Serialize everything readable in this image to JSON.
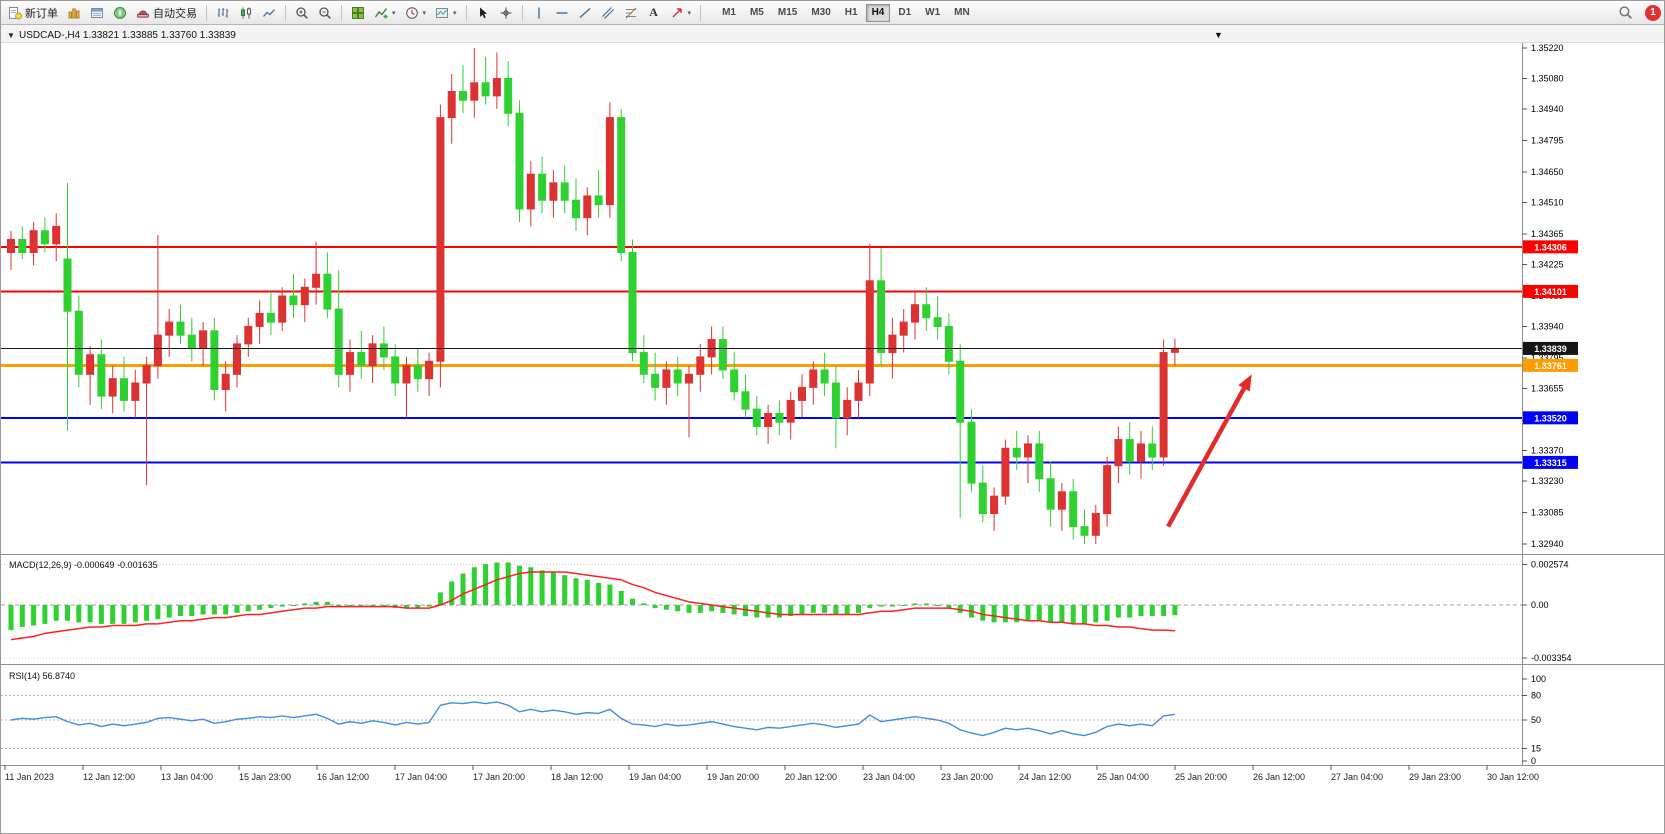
{
  "toolbar": {
    "new_order": "新订单",
    "autotrading": "自动交易",
    "text_tool_glyph": "A",
    "dropdown_glyph": "▾",
    "timeframes": [
      "M1",
      "M5",
      "M15",
      "M30",
      "H1",
      "H4",
      "D1",
      "W1",
      "MN"
    ],
    "active_timeframe": "H4",
    "notification_count": "1"
  },
  "chart_window": {
    "marker": "▼",
    "symbol": "USDCAD-",
    "period": "H4",
    "open": "1.33821",
    "high": "1.33885",
    "low": "1.33760",
    "close": "1.33839"
  },
  "time_axis": [
    "11 Jan 2023",
    "12 Jan 12:00",
    "13 Jan 04:00",
    "15 Jan 23:00",
    "16 Jan 12:00",
    "17 Jan 04:00",
    "17 Jan 20:00",
    "18 Jan 12:00",
    "19 Jan 04:00",
    "19 Jan 20:00",
    "20 Jan 12:00",
    "23 Jan 04:00",
    "23 Jan 20:00",
    "24 Jan 12:00",
    "25 Jan 04:00",
    "25 Jan 20:00",
    "26 Jan 12:00",
    "27 Jan 04:00",
    "29 Jan 23:00",
    "30 Jan 12:00"
  ],
  "chart_data": [
    {
      "type": "candlestick",
      "symbol": "USDCAD-",
      "period": "H4",
      "ylim": [
        1.3294,
        1.3522
      ],
      "up_color": "#dc3232",
      "down_color": "#2fd131",
      "price_ticks": [
        "1.35220",
        "1.35080",
        "1.34940",
        "1.34795",
        "1.34650",
        "1.34510",
        "1.34365",
        "1.34225",
        "1.34080",
        "1.33940",
        "1.33795",
        "1.33655",
        "1.33510",
        "1.33370",
        "1.33230",
        "1.33085",
        "1.32940"
      ],
      "hlines": [
        {
          "price": 1.34306,
          "label": "1.34306",
          "color": "#ff0000",
          "width": 2,
          "above": false
        },
        {
          "price": 1.34101,
          "label": "1.34101",
          "color": "#ff0000",
          "width": 2,
          "above": false
        },
        {
          "price": 1.33839,
          "label": "1.33839",
          "color": "#151515",
          "width": 1,
          "above": true
        },
        {
          "price": 1.33761,
          "label": "1.33761",
          "color": "#ff9c00",
          "width": 3,
          "above": false
        },
        {
          "price": 1.3352,
          "label": "1.33520",
          "color": "#0000ff",
          "width": 2,
          "above": false
        },
        {
          "price": 1.33315,
          "label": "1.33315",
          "color": "#0000ff",
          "width": 2,
          "above": false
        }
      ],
      "trend_arrow": {
        "from_bar": 102.4,
        "from_price": 1.3302,
        "to_bar": 109.8,
        "to_price": 1.3372,
        "color": "#e42b2b"
      },
      "candles": [
        [
          1.3428,
          1.3438,
          1.342,
          1.3434
        ],
        [
          1.3434,
          1.344,
          1.3425,
          1.3428
        ],
        [
          1.3428,
          1.3442,
          1.3422,
          1.3438
        ],
        [
          1.3438,
          1.3444,
          1.3428,
          1.3432
        ],
        [
          1.3432,
          1.3446,
          1.3424,
          1.344
        ],
        [
          1.3425,
          1.346,
          1.3346,
          1.3401
        ],
        [
          1.3401,
          1.3408,
          1.3366,
          1.3372
        ],
        [
          1.3372,
          1.3385,
          1.3358,
          1.3381
        ],
        [
          1.3381,
          1.3388,
          1.3356,
          1.3362
        ],
        [
          1.3362,
          1.3376,
          1.3354,
          1.337
        ],
        [
          1.337,
          1.338,
          1.3355,
          1.336
        ],
        [
          1.336,
          1.3374,
          1.3352,
          1.3368
        ],
        [
          1.3368,
          1.338,
          1.3321,
          1.3376
        ],
        [
          1.3376,
          1.3436,
          1.337,
          1.339
        ],
        [
          1.339,
          1.3402,
          1.338,
          1.3396
        ],
        [
          1.3396,
          1.3404,
          1.3386,
          1.339
        ],
        [
          1.339,
          1.3398,
          1.3378,
          1.3384
        ],
        [
          1.3384,
          1.3396,
          1.3376,
          1.3392
        ],
        [
          1.3392,
          1.3398,
          1.336,
          1.3365
        ],
        [
          1.3365,
          1.3378,
          1.3355,
          1.3372
        ],
        [
          1.3372,
          1.339,
          1.3366,
          1.3386
        ],
        [
          1.3386,
          1.3398,
          1.338,
          1.3394
        ],
        [
          1.3394,
          1.3406,
          1.3386,
          1.34
        ],
        [
          1.34,
          1.341,
          1.339,
          1.3396
        ],
        [
          1.3396,
          1.3412,
          1.3392,
          1.3408
        ],
        [
          1.3408,
          1.3418,
          1.3398,
          1.3404
        ],
        [
          1.3404,
          1.3416,
          1.3396,
          1.3412
        ],
        [
          1.3412,
          1.3433,
          1.3404,
          1.3418
        ],
        [
          1.3418,
          1.3428,
          1.3398,
          1.3402
        ],
        [
          1.3402,
          1.342,
          1.3366,
          1.3372
        ],
        [
          1.3372,
          1.3388,
          1.3364,
          1.3382
        ],
        [
          1.3382,
          1.3392,
          1.337,
          1.3376
        ],
        [
          1.3376,
          1.339,
          1.3368,
          1.3386
        ],
        [
          1.3386,
          1.3394,
          1.3374,
          1.338
        ],
        [
          1.338,
          1.3386,
          1.3362,
          1.3368
        ],
        [
          1.3368,
          1.338,
          1.3352,
          1.3376
        ],
        [
          1.3376,
          1.3384,
          1.3364,
          1.337
        ],
        [
          1.337,
          1.3382,
          1.3362,
          1.3378
        ],
        [
          1.3378,
          1.3496,
          1.3366,
          1.349
        ],
        [
          1.349,
          1.351,
          1.3478,
          1.3502
        ],
        [
          1.3502,
          1.3514,
          1.3492,
          1.3498
        ],
        [
          1.3498,
          1.3522,
          1.349,
          1.3506
        ],
        [
          1.3506,
          1.3518,
          1.3496,
          1.35
        ],
        [
          1.35,
          1.352,
          1.3494,
          1.3508
        ],
        [
          1.3508,
          1.3516,
          1.3486,
          1.3492
        ],
        [
          1.3492,
          1.3498,
          1.3442,
          1.3448
        ],
        [
          1.3448,
          1.347,
          1.344,
          1.3464
        ],
        [
          1.3464,
          1.3472,
          1.3446,
          1.3452
        ],
        [
          1.3452,
          1.3466,
          1.3444,
          1.346
        ],
        [
          1.346,
          1.3468,
          1.3446,
          1.3452
        ],
        [
          1.3452,
          1.3462,
          1.3438,
          1.3444
        ],
        [
          1.3444,
          1.3458,
          1.3436,
          1.3454
        ],
        [
          1.3454,
          1.3466,
          1.3444,
          1.345
        ],
        [
          1.345,
          1.3497,
          1.3444,
          1.349
        ],
        [
          1.349,
          1.3494,
          1.3424,
          1.3428
        ],
        [
          1.3428,
          1.3434,
          1.3378,
          1.3382
        ],
        [
          1.3382,
          1.339,
          1.3368,
          1.3372
        ],
        [
          1.3372,
          1.3382,
          1.336,
          1.3366
        ],
        [
          1.3366,
          1.3378,
          1.3358,
          1.3374
        ],
        [
          1.3374,
          1.338,
          1.3362,
          1.3368
        ],
        [
          1.3368,
          1.3376,
          1.3343,
          1.3372
        ],
        [
          1.3372,
          1.3386,
          1.3364,
          1.338
        ],
        [
          1.338,
          1.3394,
          1.3372,
          1.3388
        ],
        [
          1.3388,
          1.3394,
          1.337,
          1.3374
        ],
        [
          1.3374,
          1.3382,
          1.336,
          1.3364
        ],
        [
          1.3364,
          1.3372,
          1.3352,
          1.3356
        ],
        [
          1.3356,
          1.3362,
          1.3344,
          1.3348
        ],
        [
          1.3348,
          1.3358,
          1.334,
          1.3354
        ],
        [
          1.3354,
          1.336,
          1.3344,
          1.335
        ],
        [
          1.335,
          1.3364,
          1.3342,
          1.336
        ],
        [
          1.336,
          1.3372,
          1.3352,
          1.3366
        ],
        [
          1.3366,
          1.3378,
          1.3358,
          1.3374
        ],
        [
          1.3374,
          1.3382,
          1.3362,
          1.3368
        ],
        [
          1.3368,
          1.3376,
          1.3338,
          1.3352
        ],
        [
          1.3352,
          1.3366,
          1.3344,
          1.336
        ],
        [
          1.336,
          1.3374,
          1.3352,
          1.3368
        ],
        [
          1.3368,
          1.3432,
          1.3362,
          1.3415
        ],
        [
          1.3415,
          1.343,
          1.3376,
          1.3382
        ],
        [
          1.3382,
          1.3398,
          1.337,
          1.339
        ],
        [
          1.339,
          1.3402,
          1.3382,
          1.3396
        ],
        [
          1.3396,
          1.341,
          1.3388,
          1.3404
        ],
        [
          1.3404,
          1.3412,
          1.3392,
          1.3398
        ],
        [
          1.3398,
          1.3408,
          1.3388,
          1.3394
        ],
        [
          1.3394,
          1.34,
          1.3372,
          1.3378
        ],
        [
          1.3378,
          1.3386,
          1.3306,
          1.335
        ],
        [
          1.335,
          1.3356,
          1.3318,
          1.3322
        ],
        [
          1.3322,
          1.333,
          1.3304,
          1.3308
        ],
        [
          1.3308,
          1.332,
          1.33,
          1.3316
        ],
        [
          1.3316,
          1.3342,
          1.3312,
          1.3338
        ],
        [
          1.3338,
          1.3346,
          1.3328,
          1.3334
        ],
        [
          1.3334,
          1.3344,
          1.3322,
          1.334
        ],
        [
          1.334,
          1.3346,
          1.3318,
          1.3324
        ],
        [
          1.3324,
          1.3332,
          1.3302,
          1.331
        ],
        [
          1.331,
          1.3322,
          1.33,
          1.3318
        ],
        [
          1.3318,
          1.3324,
          1.3296,
          1.3302
        ],
        [
          1.3302,
          1.331,
          1.3294,
          1.3298
        ],
        [
          1.3298,
          1.3312,
          1.3294,
          1.3308
        ],
        [
          1.3308,
          1.3334,
          1.3302,
          1.333
        ],
        [
          1.333,
          1.3348,
          1.3322,
          1.3342
        ],
        [
          1.3342,
          1.335,
          1.3326,
          1.3332
        ],
        [
          1.3332,
          1.3346,
          1.3324,
          1.334
        ],
        [
          1.334,
          1.3348,
          1.3328,
          1.3334
        ],
        [
          1.3334,
          1.3388,
          1.333,
          1.3382
        ],
        [
          1.33821,
          1.33885,
          1.3376,
          1.33839
        ]
      ]
    },
    {
      "type": "bar",
      "indicator": "MACD(12,26,9)",
      "values_label": "-0.000649 -0.001635",
      "histogram_color": "#2fd131",
      "signal_color": "#ff2020",
      "axis_ticks": [
        {
          "v": 0.002574,
          "label": "0.002574"
        },
        {
          "v": 0,
          "label": "0.00"
        },
        {
          "v": -0.003354,
          "label": "-0.003354"
        }
      ],
      "histogram": [
        -0.0016,
        -0.0014,
        -0.0013,
        -0.0012,
        -0.001,
        -0.001,
        -0.0011,
        -0.0011,
        -0.0012,
        -0.0012,
        -0.0012,
        -0.0011,
        -0.001,
        -0.0009,
        -0.0008,
        -0.0007,
        -0.0007,
        -0.0006,
        -0.0006,
        -0.0006,
        -0.0005,
        -0.0004,
        -0.0003,
        -0.0002,
        -0.0001,
        0.0,
        0.0001,
        0.0002,
        0.0002,
        0.0,
        -0.0001,
        -0.0001,
        -0.0001,
        -0.0001,
        -0.0002,
        -0.0002,
        -0.0002,
        -0.0001,
        0.0008,
        0.0015,
        0.002,
        0.0024,
        0.0026,
        0.0027,
        0.0027,
        0.0025,
        0.0024,
        0.0022,
        0.0021,
        0.0019,
        0.0017,
        0.0016,
        0.0014,
        0.0013,
        0.0009,
        0.0004,
        0.0001,
        -0.0002,
        -0.0003,
        -0.0004,
        -0.0005,
        -0.0005,
        -0.0004,
        -0.0005,
        -0.0006,
        -0.0007,
        -0.0008,
        -0.0008,
        -0.0008,
        -0.0007,
        -0.0006,
        -0.0005,
        -0.0005,
        -0.0006,
        -0.0006,
        -0.0005,
        -0.0002,
        -0.0001,
        -0.0001,
        0.0,
        0.0001,
        0.0001,
        0.0,
        -0.0002,
        -0.0005,
        -0.0008,
        -0.001,
        -0.0011,
        -0.0011,
        -0.0011,
        -0.001,
        -0.001,
        -0.0011,
        -0.0011,
        -0.0012,
        -0.0012,
        -0.0011,
        -0.001,
        -0.0008,
        -0.0008,
        -0.0007,
        -0.0007,
        -0.0007,
        -0.000649
      ],
      "signal": [
        -0.0022,
        -0.0021,
        -0.002,
        -0.0018,
        -0.0017,
        -0.0016,
        -0.0015,
        -0.0014,
        -0.0014,
        -0.0013,
        -0.0013,
        -0.0013,
        -0.0012,
        -0.0012,
        -0.0011,
        -0.001,
        -0.001,
        -0.0009,
        -0.0008,
        -0.0008,
        -0.0007,
        -0.0006,
        -0.0006,
        -0.0005,
        -0.0004,
        -0.0003,
        -0.0002,
        -0.0002,
        -0.0001,
        -0.0001,
        -0.0001,
        -0.0001,
        -0.0001,
        -0.0001,
        -0.0001,
        -0.0002,
        -0.0002,
        -0.0002,
        0.0,
        0.0003,
        0.0007,
        0.001,
        0.0013,
        0.0016,
        0.0018,
        0.002,
        0.0021,
        0.0021,
        0.0021,
        0.0021,
        0.002,
        0.0019,
        0.0018,
        0.0017,
        0.0016,
        0.0013,
        0.0011,
        0.0008,
        0.0006,
        0.0004,
        0.0002,
        0.0001,
        0.0,
        -0.0001,
        -0.0002,
        -0.0003,
        -0.0004,
        -0.0005,
        -0.0006,
        -0.0006,
        -0.0006,
        -0.0006,
        -0.0006,
        -0.0006,
        -0.0006,
        -0.0006,
        -0.0005,
        -0.0004,
        -0.0004,
        -0.0003,
        -0.0002,
        -0.0002,
        -0.0002,
        -0.0002,
        -0.0003,
        -0.0004,
        -0.0006,
        -0.0007,
        -0.0008,
        -0.0009,
        -0.001,
        -0.001,
        -0.0011,
        -0.0011,
        -0.0012,
        -0.0012,
        -0.0013,
        -0.0013,
        -0.0014,
        -0.0014,
        -0.0015,
        -0.0016,
        -0.0016,
        -0.001635
      ]
    },
    {
      "type": "line",
      "indicator": "RSI(14)",
      "value_label": "56.8740",
      "line_color": "#3e8ede",
      "levels": [
        80,
        50,
        15
      ],
      "axis_ticks": [
        {
          "v": 100,
          "label": "100"
        },
        {
          "v": 80,
          "label": "80"
        },
        {
          "v": 50,
          "label": "50"
        },
        {
          "v": 15,
          "label": "15"
        },
        {
          "v": 0,
          "label": "0"
        }
      ],
      "values": [
        50,
        52,
        51,
        53,
        54,
        48,
        44,
        46,
        42,
        45,
        43,
        45,
        47,
        52,
        53,
        51,
        49,
        51,
        46,
        48,
        51,
        52,
        54,
        53,
        55,
        53,
        55,
        57,
        52,
        45,
        48,
        46,
        49,
        47,
        44,
        47,
        45,
        47,
        68,
        71,
        70,
        72,
        70,
        72,
        68,
        60,
        63,
        60,
        62,
        60,
        57,
        59,
        58,
        63,
        52,
        45,
        44,
        42,
        45,
        43,
        44,
        46,
        48,
        45,
        42,
        40,
        38,
        41,
        40,
        42,
        44,
        46,
        44,
        41,
        43,
        45,
        56,
        48,
        50,
        52,
        54,
        52,
        50,
        46,
        38,
        34,
        31,
        35,
        40,
        38,
        40,
        37,
        33,
        37,
        33,
        31,
        35,
        42,
        45,
        43,
        45,
        43,
        55,
        56.87
      ]
    }
  ]
}
